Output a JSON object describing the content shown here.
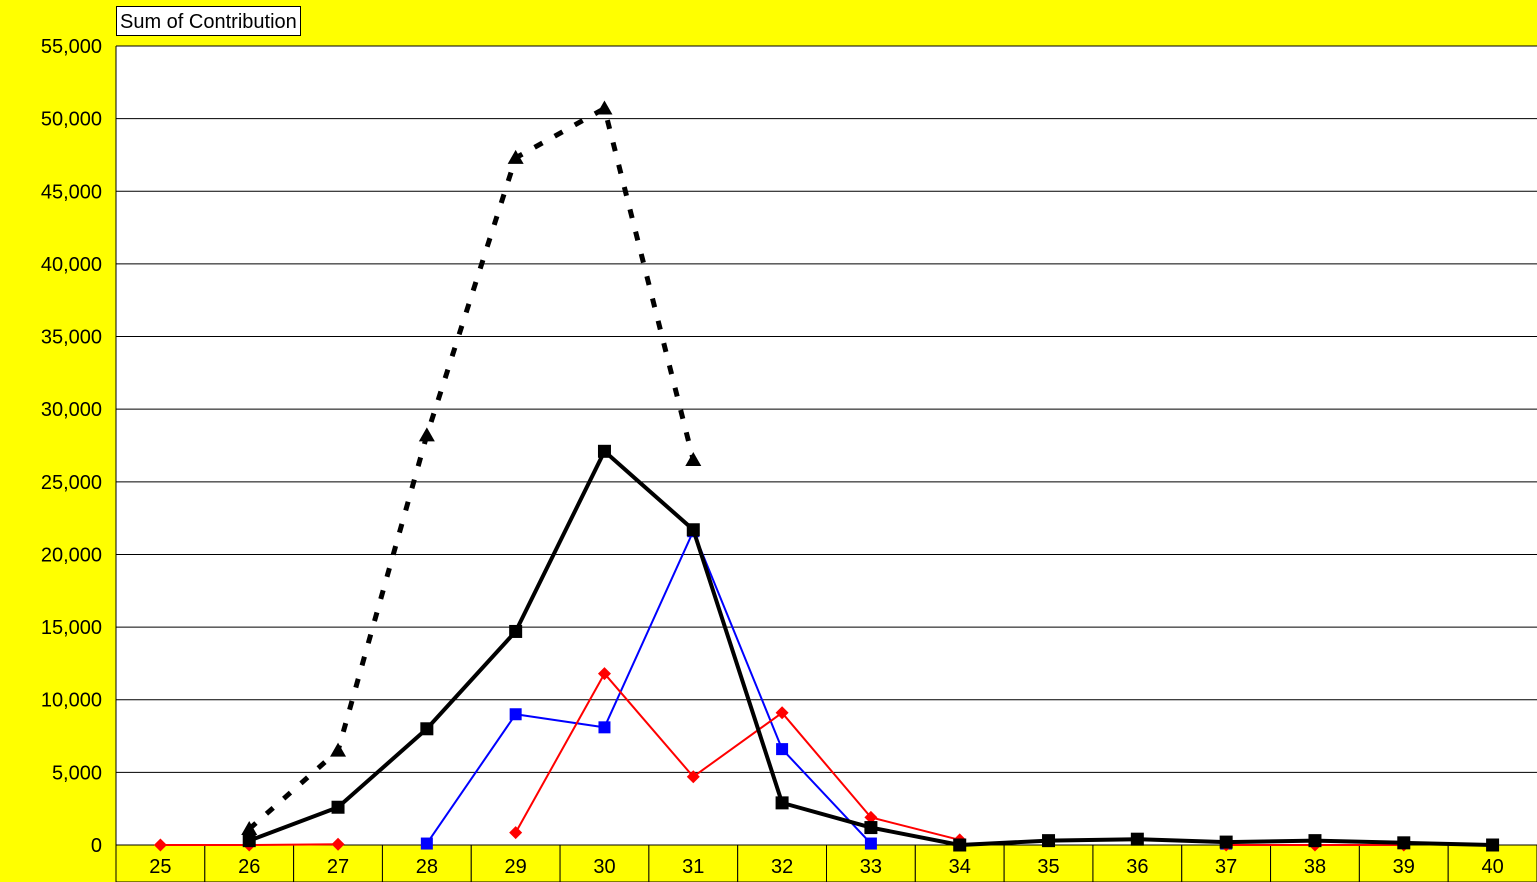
{
  "pivot_field_button": "Sum of Contribution",
  "colors": {
    "background": "#ffff00",
    "plot_area": "#ffffff",
    "category_cell": "#ffff00",
    "series_black": "#000000",
    "series_blue": "#0000ff",
    "series_red": "#ff0000"
  },
  "chart_data": {
    "type": "line",
    "title": "",
    "xlabel": "",
    "ylabel": "",
    "categories": [
      "25",
      "26",
      "27",
      "28",
      "29",
      "30",
      "31",
      "32",
      "33",
      "34",
      "35",
      "36",
      "37",
      "38",
      "39",
      "40"
    ],
    "ylim": [
      0,
      55000
    ],
    "yticks": [
      0,
      5000,
      10000,
      15000,
      20000,
      25000,
      30000,
      35000,
      40000,
      45000,
      50000,
      55000
    ],
    "ytick_labels": [
      "0",
      "5,000",
      "10,000",
      "15,000",
      "20,000",
      "25,000",
      "30,000",
      "35,000",
      "40,000",
      "45,000",
      "50,000",
      "55,000"
    ],
    "grid": true,
    "legend": "none",
    "series": [
      {
        "color": "#000000",
        "line": "dotted",
        "marker": "triangle",
        "values": [
          null,
          1100,
          6500,
          28200,
          47300,
          50700,
          26500,
          null,
          null,
          null,
          null,
          null,
          null,
          null,
          null,
          null
        ]
      },
      {
        "color": "#000000",
        "line": "solid-thick",
        "marker": "square",
        "values": [
          null,
          300,
          2600,
          8000,
          14700,
          27100,
          21700,
          2900,
          1200,
          0,
          300,
          400,
          200,
          300,
          150,
          0
        ]
      },
      {
        "color": "#0000ff",
        "line": "solid",
        "marker": "square",
        "values": [
          null,
          null,
          null,
          100,
          9000,
          8100,
          21600,
          6600,
          100,
          null,
          null,
          null,
          100,
          null,
          null,
          null
        ]
      },
      {
        "color": "#ff0000",
        "line": "solid",
        "marker": "diamond",
        "values": [
          0,
          0,
          50,
          null,
          850,
          11800,
          4700,
          9100,
          1900,
          350,
          null,
          null,
          0,
          0,
          0,
          null
        ]
      }
    ]
  }
}
